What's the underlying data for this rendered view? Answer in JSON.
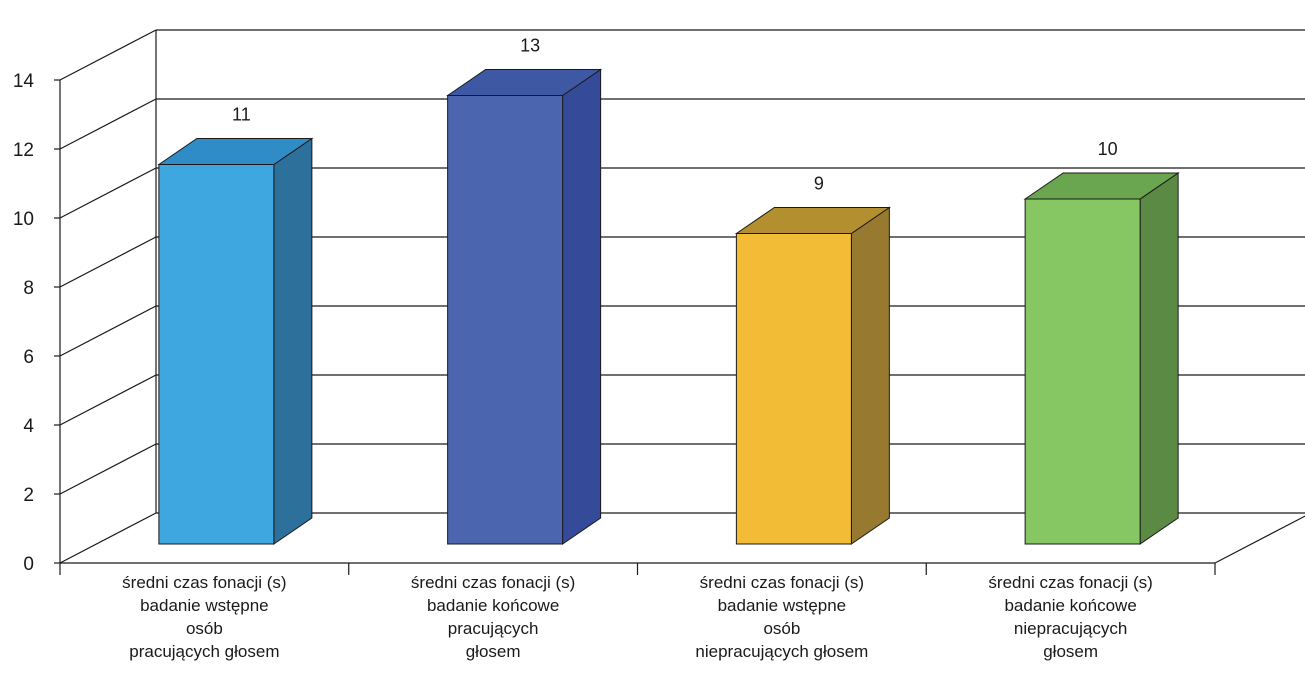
{
  "chart_data": {
    "type": "bar",
    "three_d": true,
    "grid": true,
    "legend": "none",
    "title": "",
    "xlabel": "",
    "ylabel": "",
    "ylim": [
      0,
      14
    ],
    "yticks": [
      "0",
      "2",
      "4",
      "6",
      "8",
      "10",
      "12",
      "14"
    ],
    "categories": [
      [
        "średni czas fonacji (s)",
        "badanie wstępne",
        "osób",
        "pracujących głosem"
      ],
      [
        "średni czas fonacji (s)",
        "badanie końcowe",
        "pracujących",
        "głosem"
      ],
      [
        "średni czas fonacji (s)",
        "badanie wstępne",
        "osób",
        "niepracujących głosem"
      ],
      [
        "średni czas fonacji (s)",
        "badanie końcowe",
        "niepracujących",
        "głosem"
      ]
    ],
    "values": [
      11,
      13,
      9,
      10
    ],
    "value_labels": [
      "11",
      "13",
      "9",
      "10"
    ],
    "colors": [
      {
        "front": "#3ea7df",
        "top": "#2f8cc6",
        "side": "#2e709c"
      },
      {
        "front": "#4b66ae",
        "top": "#3f58a4",
        "side": "#354b9a"
      },
      {
        "front": "#f2bc37",
        "top": "#b38f30",
        "side": "#977930"
      },
      {
        "front": "#86c764",
        "top": "#6aa54f",
        "side": "#5a8a44"
      }
    ]
  }
}
